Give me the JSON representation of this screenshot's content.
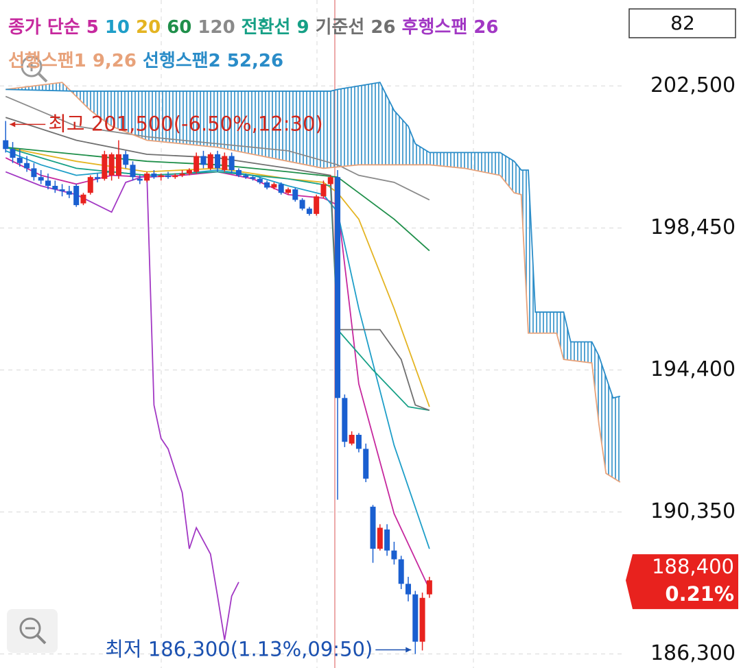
{
  "chart_data": {
    "type": "candlestick",
    "badge": "82",
    "legend_title": "종가 단순",
    "xlim": [
      -0.8,
      87.6
    ],
    "ylim": [
      185900,
      204950
    ],
    "yticks": [
      {
        "value": 202500,
        "label": "202,500"
      },
      {
        "value": 198450,
        "label": "198,450"
      },
      {
        "value": 194400,
        "label": "194,400"
      },
      {
        "value": 190350,
        "label": "190,350"
      },
      {
        "value": 186300,
        "label": "186,300"
      }
    ],
    "grid": true,
    "up_color": "#e8221e",
    "down_color": "#1a5fd0",
    "open": [
      200950,
      200700,
      200450,
      200300,
      200150,
      199900,
      199800,
      199650,
      199550,
      199500,
      199650,
      199150,
      199450,
      199900,
      199850,
      199950,
      199950,
      200550,
      200250,
      199850,
      199800,
      200000,
      199900,
      199950,
      199900,
      199950,
      200000,
      200050,
      200500,
      200150,
      200550,
      200100,
      200500,
      200100,
      199950,
      199900,
      199850,
      199750,
      199600,
      199700,
      199450,
      199550,
      199250,
      199000,
      198850,
      199350,
      199700,
      199900,
      193600,
      192300,
      192550,
      192150,
      190500,
      189300,
      189850,
      189250,
      189000,
      188300,
      188000,
      186650,
      188000
    ],
    "high": [
      201500,
      200900,
      200700,
      200500,
      200300,
      200100,
      200000,
      199800,
      199700,
      199650,
      199700,
      199450,
      199950,
      200000,
      200650,
      200600,
      200950,
      200650,
      200350,
      199950,
      200050,
      200100,
      200000,
      200050,
      200000,
      200100,
      200150,
      200600,
      200650,
      200600,
      200650,
      200600,
      200600,
      200150,
      200000,
      199950,
      199900,
      199800,
      199750,
      199750,
      199600,
      199600,
      199300,
      199050,
      199400,
      199800,
      199950,
      200100,
      193700,
      192650,
      192600,
      192300,
      190550,
      190000,
      190000,
      189500,
      189100,
      188500,
      188100,
      188050,
      188500
    ],
    "low": [
      200600,
      200300,
      200200,
      200050,
      199800,
      199700,
      199550,
      199450,
      199350,
      199300,
      199050,
      199100,
      199400,
      199750,
      199800,
      199800,
      199850,
      200150,
      199800,
      199700,
      199750,
      199850,
      199800,
      199850,
      199850,
      199900,
      199950,
      200000,
      200150,
      200100,
      200050,
      200050,
      200000,
      199900,
      199850,
      199800,
      199700,
      199550,
      199550,
      199400,
      199400,
      199200,
      198950,
      198800,
      198800,
      199300,
      199650,
      190700,
      192200,
      192250,
      192050,
      191200,
      188900,
      189250,
      189100,
      188850,
      188150,
      187800,
      186300,
      186400,
      187900
    ],
    "close": [
      200700,
      200450,
      200300,
      200150,
      199900,
      199800,
      199650,
      199550,
      199500,
      199400,
      199100,
      199400,
      199900,
      199850,
      200550,
      200550,
      200550,
      200250,
      199900,
      199800,
      200000,
      199900,
      199950,
      199900,
      199950,
      200000,
      200100,
      200500,
      200250,
      200550,
      200150,
      200500,
      200100,
      199950,
      199900,
      199850,
      199750,
      199600,
      199700,
      199450,
      199550,
      199250,
      199000,
      198850,
      199350,
      199700,
      199900,
      193600,
      192350,
      192550,
      192150,
      191300,
      189300,
      189900,
      189250,
      189000,
      188300,
      188000,
      186650,
      187900,
      188400
    ],
    "series": [
      {
        "name": "5",
        "color": "#c6289e",
        "x": [
          0,
          5,
          10,
          15,
          20,
          25,
          30,
          35,
          40,
          45,
          47,
          50,
          55,
          60
        ],
        "values": [
          200450,
          199950,
          199700,
          199950,
          199900,
          199950,
          200050,
          199850,
          199400,
          199300,
          199100,
          194000,
          190300,
          188150
        ]
      },
      {
        "name": "10",
        "color": "#1e9ec8",
        "x": [
          0,
          5,
          10,
          15,
          20,
          25,
          30,
          35,
          40,
          45,
          47,
          50,
          55,
          60
        ],
        "values": [
          200650,
          200250,
          199950,
          200050,
          199950,
          200000,
          200100,
          199950,
          199650,
          199400,
          198900,
          196150,
          192250,
          189300
        ]
      },
      {
        "name": "20",
        "color": "#e4b422",
        "x": [
          0,
          10,
          20,
          30,
          40,
          45,
          47,
          50,
          55,
          60
        ],
        "values": [
          200750,
          200350,
          200050,
          200150,
          199850,
          199750,
          199450,
          198700,
          196150,
          193350
        ]
      },
      {
        "name": "60",
        "color": "#1f8f4a",
        "x": [
          0,
          10,
          20,
          30,
          40,
          47,
          50,
          55,
          60
        ],
        "values": [
          200750,
          200550,
          200350,
          200250,
          200050,
          199900,
          199450,
          198700,
          197800
        ]
      },
      {
        "name": "120",
        "color": "#8a8a8a",
        "x": [
          0,
          10,
          20,
          30,
          40,
          47,
          50,
          55,
          60
        ],
        "values": [
          202200,
          201350,
          201050,
          200850,
          200650,
          200250,
          199950,
          199750,
          199250
        ]
      },
      {
        "name": "전환선 9",
        "color": "#16a086",
        "x": [
          0,
          10,
          20,
          30,
          40,
          46,
          47,
          52,
          57,
          60
        ],
        "values": [
          200750,
          200150,
          199950,
          200050,
          199850,
          199650,
          195550,
          194400,
          193350,
          193250
        ]
      },
      {
        "name": "기준선 26",
        "color": "#707070",
        "x": [
          0,
          10,
          20,
          30,
          40,
          46,
          47,
          53,
          56,
          58,
          60
        ],
        "values": [
          201600,
          200950,
          200550,
          200450,
          200150,
          199950,
          195550,
          195550,
          194700,
          193400,
          193250
        ]
      },
      {
        "name": "후행스팬 26",
        "color": "#a238c4",
        "x": [
          0,
          5,
          10,
          15,
          17,
          20,
          21,
          22,
          23,
          25,
          26,
          27,
          29,
          30,
          31,
          32,
          33
        ],
        "values": [
          200050,
          199650,
          199400,
          198900,
          199750,
          199950,
          193400,
          192450,
          192150,
          190900,
          189300,
          189900,
          189150,
          187950,
          186700,
          187950,
          188350
        ]
      },
      {
        "name": "선행스팬1 9,26",
        "color": "#e8a27a",
        "x": [
          0,
          8,
          10,
          12,
          15,
          20,
          25,
          30,
          35,
          40,
          45,
          50,
          55,
          60,
          65,
          70,
          72,
          73,
          74,
          78,
          79,
          83,
          84,
          85,
          87
        ],
        "values": [
          202400,
          202600,
          202200,
          201800,
          201350,
          200950,
          200850,
          200750,
          200550,
          200350,
          200150,
          200250,
          200250,
          200250,
          200150,
          199950,
          199450,
          199400,
          195450,
          195450,
          194700,
          194600,
          192850,
          191450,
          191200
        ]
      },
      {
        "name": "선행스팬2 52,26",
        "color": "#2a8cc8",
        "x": [
          0,
          10,
          30,
          46,
          47,
          53,
          55,
          57,
          58,
          60,
          70,
          72,
          73,
          74,
          75,
          79,
          80,
          83,
          84,
          86,
          87
        ],
        "values": [
          202400,
          202350,
          202350,
          202350,
          202400,
          202600,
          201800,
          201350,
          200850,
          200600,
          200600,
          200350,
          200100,
          200100,
          196050,
          196050,
          195200,
          195200,
          194800,
          193600,
          193650
        ]
      }
    ],
    "max_label": "최고 201,500(-6.50%,12:30)",
    "min_label": "최저 186,300(1.13%,09:50)",
    "last_price": {
      "value": 188400,
      "label": "188,400"
    },
    "change": {
      "value": 0.21,
      "label": "0.21%"
    }
  }
}
